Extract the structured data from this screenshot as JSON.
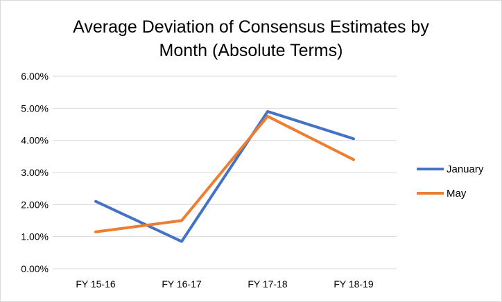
{
  "chart_data": {
    "type": "line",
    "title_line1": "Average Deviation of Consensus Estimates by",
    "title_line2": "Month (Absolute Terms)",
    "categories": [
      "FY 15-16",
      "FY 16-17",
      "FY 17-18",
      "FY 18-19"
    ],
    "y_ticks": [
      "0.00%",
      "1.00%",
      "2.00%",
      "3.00%",
      "4.00%",
      "5.00%",
      "6.00%"
    ],
    "ylim": [
      0,
      0.06
    ],
    "grid": true,
    "legend_position": "right",
    "series": [
      {
        "name": "January",
        "color": "#4472c4",
        "values": [
          0.021,
          0.0085,
          0.049,
          0.0405
        ]
      },
      {
        "name": "May",
        "color": "#ed7d31",
        "values": [
          0.0115,
          0.015,
          0.0475,
          0.034
        ]
      }
    ]
  }
}
